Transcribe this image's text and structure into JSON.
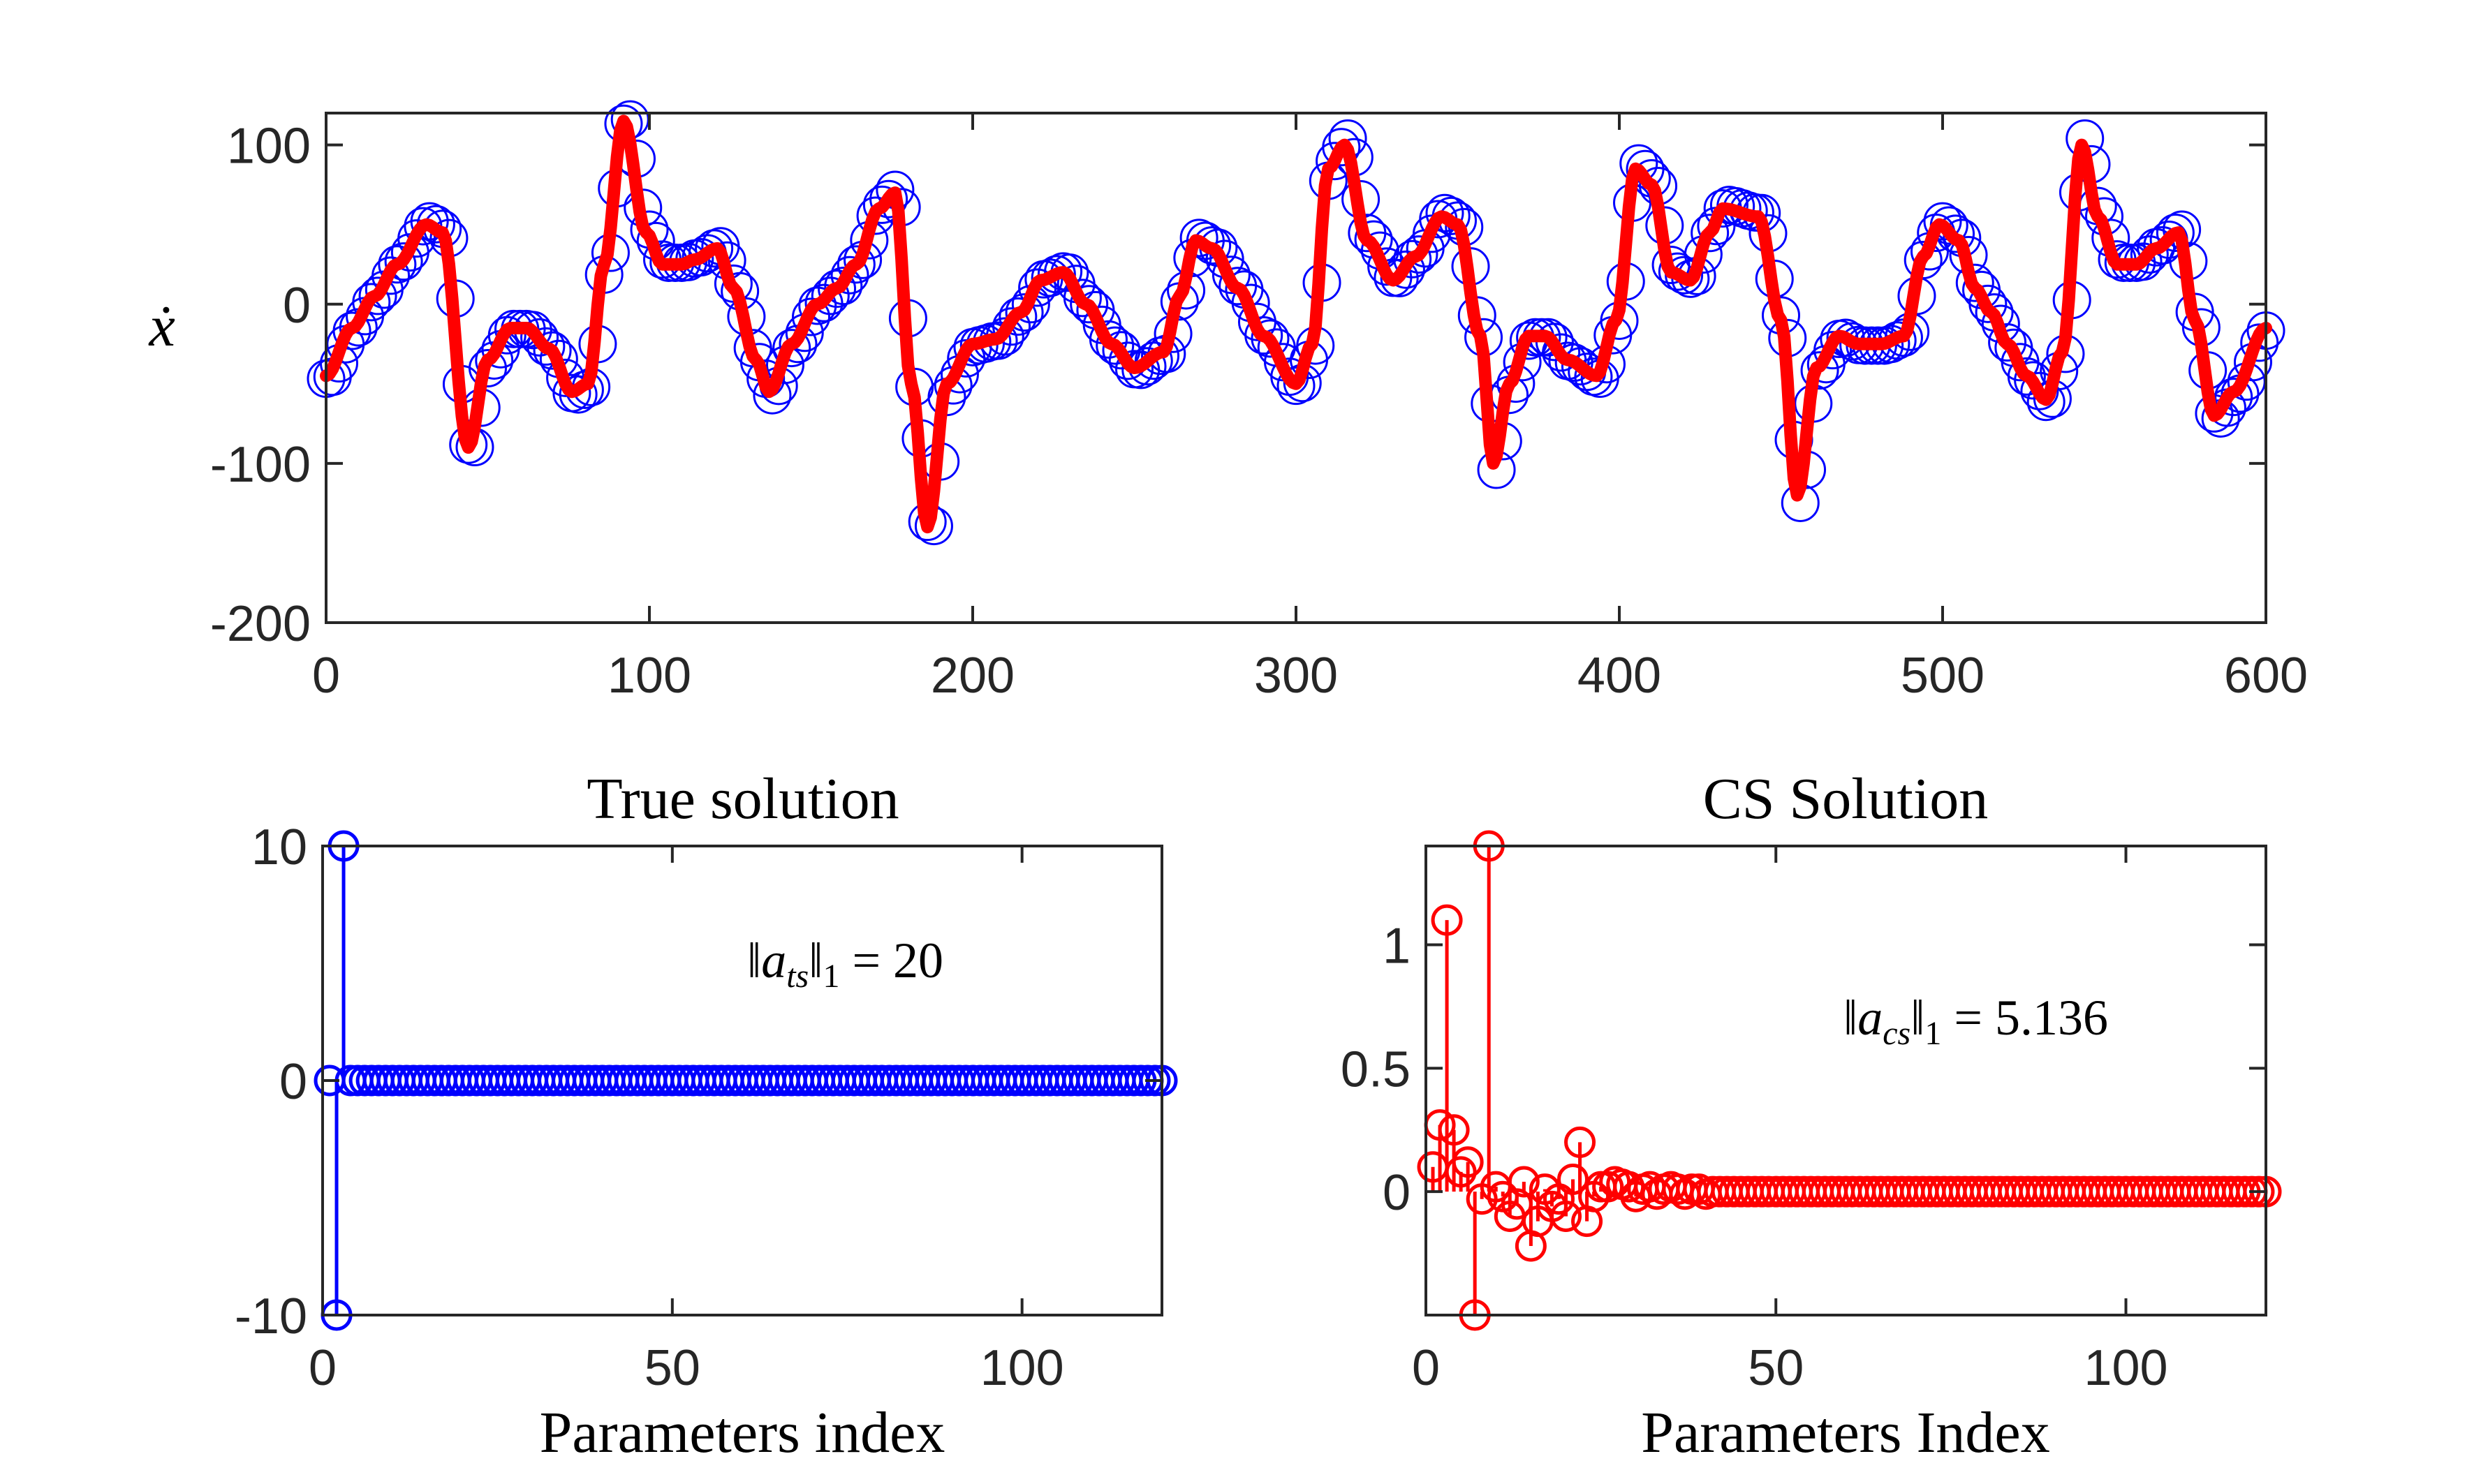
{
  "colors": {
    "blue": "#0000ff",
    "red": "#ff0000",
    "axis": "#262626"
  },
  "chart_data": [
    {
      "type": "line",
      "title": "",
      "xlabel": "",
      "ylabel": "ẋ",
      "xlim": [
        0,
        600
      ],
      "ylim": [
        -200,
        120
      ],
      "xticks": [
        0,
        100,
        200,
        300,
        400,
        500,
        600
      ],
      "yticks": [
        -200,
        -100,
        0,
        100
      ],
      "xtick_labels": [
        "0",
        "100",
        "200",
        "300",
        "400",
        "500",
        "600"
      ],
      "ytick_labels": [
        "-200",
        "-100",
        "0",
        "100"
      ],
      "grid": false,
      "markers_every": 2,
      "series": [
        {
          "color": "#ff0000",
          "style": "thick line",
          "x": [
            0,
            8,
            15,
            22,
            31,
            36,
            44,
            50,
            57,
            62,
            69,
            76,
            81,
            86,
            92,
            99,
            104,
            110,
            114,
            121,
            126,
            133,
            137,
            144,
            152,
            158,
            164,
            171,
            176,
            181,
            186,
            192,
            200,
            207,
            215,
            221,
            228,
            235,
            243,
            250,
            259,
            264,
            269,
            274,
            282,
            290,
            300,
            305,
            310,
            315,
            322,
            330,
            337,
            345,
            350,
            357,
            361,
            366,
            372,
            377,
            384,
            393,
            399,
            405,
            410,
            416,
            422,
            428,
            432,
            443,
            450,
            455,
            461,
            468,
            474,
            481,
            488,
            494,
            499,
            505,
            510,
            515,
            520,
            526,
            532,
            537,
            543,
            548,
            554,
            560,
            566,
            573,
            578,
            584,
            590,
            600
          ],
          "y": [
            -45,
            -15,
            5,
            25,
            50,
            45,
            -90,
            -35,
            -15,
            -15,
            -28,
            -55,
            -50,
            25,
            115,
            45,
            25,
            25,
            28,
            35,
            10,
            -35,
            -55,
            -25,
            0,
            10,
            25,
            60,
            70,
            -50,
            -140,
            -50,
            -25,
            -22,
            -5,
            15,
            20,
            0,
            -25,
            -40,
            -30,
            5,
            40,
            35,
            10,
            -20,
            -50,
            -25,
            85,
            100,
            40,
            15,
            30,
            55,
            50,
            -20,
            -100,
            -50,
            -20,
            -20,
            -35,
            -45,
            -10,
            85,
            75,
            20,
            15,
            45,
            60,
            55,
            -10,
            -120,
            -40,
            -20,
            -25,
            -25,
            -20,
            30,
            50,
            40,
            10,
            -5,
            -25,
            -45,
            -60,
            -30,
            100,
            55,
            25,
            25,
            35,
            45,
            -10,
            -70,
            -55,
            -15
          ]
        }
      ]
    },
    {
      "type": "stem",
      "title": "True solution",
      "xlabel": "Parameters index",
      "ylabel": "",
      "xlim": [
        0,
        120
      ],
      "ylim": [
        -10,
        10
      ],
      "xticks": [
        0,
        50,
        100
      ],
      "yticks": [
        -10,
        0,
        10
      ],
      "xtick_labels": [
        "0",
        "50",
        "100"
      ],
      "ytick_labels": [
        "-10",
        "0",
        "10"
      ],
      "grid": false,
      "annotation": {
        "text": "‖a_ts‖₁ = 20",
        "base": "‖a",
        "sub": "ts",
        "post": "‖",
        "sub2": "1",
        "eq": " = 20"
      },
      "series": [
        {
          "color": "#0000ff",
          "x_start": 1,
          "x_end": 120,
          "nonzero": [
            {
              "x": 2,
              "y": -10
            },
            {
              "x": 3,
              "y": 10
            }
          ]
        }
      ]
    },
    {
      "type": "stem",
      "title": "CS Solution",
      "xlabel": "Parameters Index",
      "ylabel": "",
      "xlim": [
        0,
        120
      ],
      "ylim": [
        -0.5,
        1.4
      ],
      "xticks": [
        0,
        50,
        100
      ],
      "yticks": [
        0,
        0.5,
        1
      ],
      "xtick_labels": [
        "0",
        "50",
        "100"
      ],
      "ytick_labels": [
        "0",
        "0.5",
        "1"
      ],
      "grid": false,
      "annotation": {
        "text": "‖a_cs‖₁ = 5.136",
        "base": "‖a",
        "sub": "cs",
        "post": "‖",
        "sub2": "1",
        "eq": " = 5.136"
      },
      "series": [
        {
          "color": "#ff0000",
          "x_start": 1,
          "x_end": 120,
          "nonzero": [
            {
              "x": 1,
              "y": 0.1
            },
            {
              "x": 2,
              "y": 0.27
            },
            {
              "x": 3,
              "y": 1.1
            },
            {
              "x": 4,
              "y": 0.25
            },
            {
              "x": 5,
              "y": 0.08
            },
            {
              "x": 6,
              "y": 0.12
            },
            {
              "x": 7,
              "y": -0.5
            },
            {
              "x": 8,
              "y": -0.03
            },
            {
              "x": 9,
              "y": 1.4
            },
            {
              "x": 10,
              "y": 0.02
            },
            {
              "x": 11,
              "y": -0.02
            },
            {
              "x": 12,
              "y": -0.1
            },
            {
              "x": 13,
              "y": -0.05
            },
            {
              "x": 14,
              "y": 0.04
            },
            {
              "x": 15,
              "y": -0.22
            },
            {
              "x": 16,
              "y": -0.12
            },
            {
              "x": 17,
              "y": 0.01
            },
            {
              "x": 18,
              "y": -0.06
            },
            {
              "x": 19,
              "y": -0.03
            },
            {
              "x": 20,
              "y": -0.1
            },
            {
              "x": 21,
              "y": 0.05
            },
            {
              "x": 22,
              "y": 0.2
            },
            {
              "x": 23,
              "y": -0.12
            },
            {
              "x": 24,
              "y": -0.02
            },
            {
              "x": 25,
              "y": 0.02
            },
            {
              "x": 26,
              "y": 0.02
            },
            {
              "x": 27,
              "y": 0.04
            },
            {
              "x": 28,
              "y": 0.03
            },
            {
              "x": 29,
              "y": 0.02
            },
            {
              "x": 30,
              "y": -0.02
            },
            {
              "x": 31,
              "y": 0.01
            },
            {
              "x": 32,
              "y": 0.02
            },
            {
              "x": 33,
              "y": -0.01
            },
            {
              "x": 34,
              "y": 0.01
            },
            {
              "x": 35,
              "y": 0.02
            },
            {
              "x": 36,
              "y": 0.01
            },
            {
              "x": 37,
              "y": -0.01
            },
            {
              "x": 38,
              "y": 0.01
            },
            {
              "x": 39,
              "y": 0.01
            },
            {
              "x": 40,
              "y": -0.01
            }
          ]
        }
      ]
    }
  ]
}
